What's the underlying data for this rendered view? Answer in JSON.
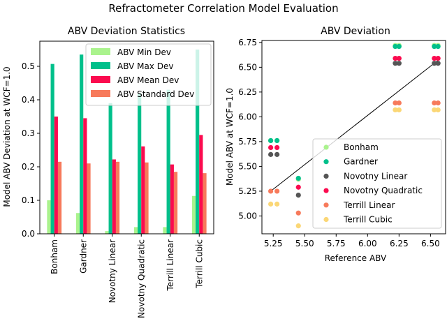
{
  "suptitle": "Refractometer Correlation Model Evaluation",
  "chart_data": [
    {
      "type": "bar",
      "title": "ABV Deviation Statistics",
      "xlabel": "",
      "ylabel": "Model ABV Deviation at WCF=1.0",
      "categories": [
        "Bonham",
        "Gardner",
        "Novotny Linear",
        "Novotny Quadratic",
        "Terrill Linear",
        "Terrill Cubic"
      ],
      "ylim": [
        0,
        0.575
      ],
      "yticks": [
        0.0,
        0.1,
        0.2,
        0.3,
        0.4,
        0.5
      ],
      "grid": false,
      "legend_position": "top-right",
      "series": [
        {
          "name": "ABV Min Dev",
          "color": "#aaf38d",
          "values": [
            0.1,
            0.062,
            0.008,
            0.02,
            0.02,
            0.113
          ]
        },
        {
          "name": "ABV Max Dev",
          "color": "#00c08b",
          "values": [
            0.507,
            0.535,
            0.39,
            0.42,
            0.43,
            0.55
          ]
        },
        {
          "name": "ABV Mean Dev",
          "color": "#fb0b4f",
          "values": [
            0.35,
            0.345,
            0.222,
            0.261,
            0.207,
            0.295
          ]
        },
        {
          "name": "ABV Standard Dev",
          "color": "#f77a5b",
          "values": [
            0.215,
            0.21,
            0.215,
            0.213,
            0.185,
            0.181
          ]
        }
      ]
    },
    {
      "type": "scatter",
      "title": "ABV Deviation",
      "xlabel": "Reference ABV",
      "ylabel": "Model ABV at WCF=1.0",
      "xlim": [
        5.16,
        6.62
      ],
      "ylim": [
        4.82,
        6.77
      ],
      "xticks": [
        5.25,
        5.5,
        5.75,
        6.0,
        6.25,
        6.5
      ],
      "xtick_labels": [
        "5.25",
        "5.50",
        "5.75",
        "6.00",
        "6.25",
        "6.50"
      ],
      "yticks": [
        5.0,
        5.25,
        5.5,
        5.75,
        6.0,
        6.25,
        6.5,
        6.75
      ],
      "ytick_labels": [
        "5.00",
        "5.25",
        "5.50",
        "5.75",
        "6.00",
        "6.25",
        "6.50",
        "6.75"
      ],
      "grid": false,
      "legend_position": "lower-right",
      "reference_line": {
        "x": [
          5.23,
          6.56
        ],
        "y": [
          5.25,
          6.57
        ]
      },
      "series": [
        {
          "name": "Bonham",
          "color": "#aaf38d",
          "points": [
            [
              5.23,
              5.76
            ],
            [
              5.28,
              5.76
            ],
            [
              5.45,
              5.37
            ],
            [
              6.22,
              6.72
            ],
            [
              6.25,
              6.72
            ],
            [
              6.53,
              6.72
            ],
            [
              6.56,
              6.72
            ]
          ]
        },
        {
          "name": "Gardner",
          "color": "#00c08b",
          "points": [
            [
              5.23,
              5.76
            ],
            [
              5.28,
              5.76
            ],
            [
              5.45,
              5.38
            ],
            [
              6.22,
              6.71
            ],
            [
              6.25,
              6.71
            ],
            [
              6.53,
              6.71
            ],
            [
              6.56,
              6.71
            ]
          ]
        },
        {
          "name": "Novotny Linear",
          "color": "#555555",
          "points": [
            [
              5.23,
              5.62
            ],
            [
              5.28,
              5.62
            ],
            [
              5.45,
              5.21
            ],
            [
              6.22,
              6.54
            ],
            [
              6.25,
              6.54
            ],
            [
              6.53,
              6.54
            ],
            [
              6.56,
              6.54
            ]
          ]
        },
        {
          "name": "Novotny Quadratic",
          "color": "#fb0b4f",
          "points": [
            [
              5.23,
              5.69
            ],
            [
              5.28,
              5.69
            ],
            [
              5.45,
              5.29
            ],
            [
              6.22,
              6.59
            ],
            [
              6.25,
              6.59
            ],
            [
              6.53,
              6.59
            ],
            [
              6.56,
              6.59
            ]
          ]
        },
        {
          "name": "Terrill Linear",
          "color": "#f77a5b",
          "points": [
            [
              5.23,
              5.25
            ],
            [
              5.28,
              5.25
            ],
            [
              5.45,
              5.03
            ],
            [
              6.22,
              6.14
            ],
            [
              6.25,
              6.14
            ],
            [
              6.53,
              6.14
            ],
            [
              6.56,
              6.14
            ]
          ]
        },
        {
          "name": "Terrill Cubic",
          "color": "#fbd776",
          "points": [
            [
              5.23,
              5.12
            ],
            [
              5.28,
              5.12
            ],
            [
              5.45,
              4.9
            ],
            [
              6.22,
              6.07
            ],
            [
              6.25,
              6.07
            ],
            [
              6.53,
              6.07
            ],
            [
              6.56,
              6.07
            ]
          ]
        }
      ]
    }
  ]
}
